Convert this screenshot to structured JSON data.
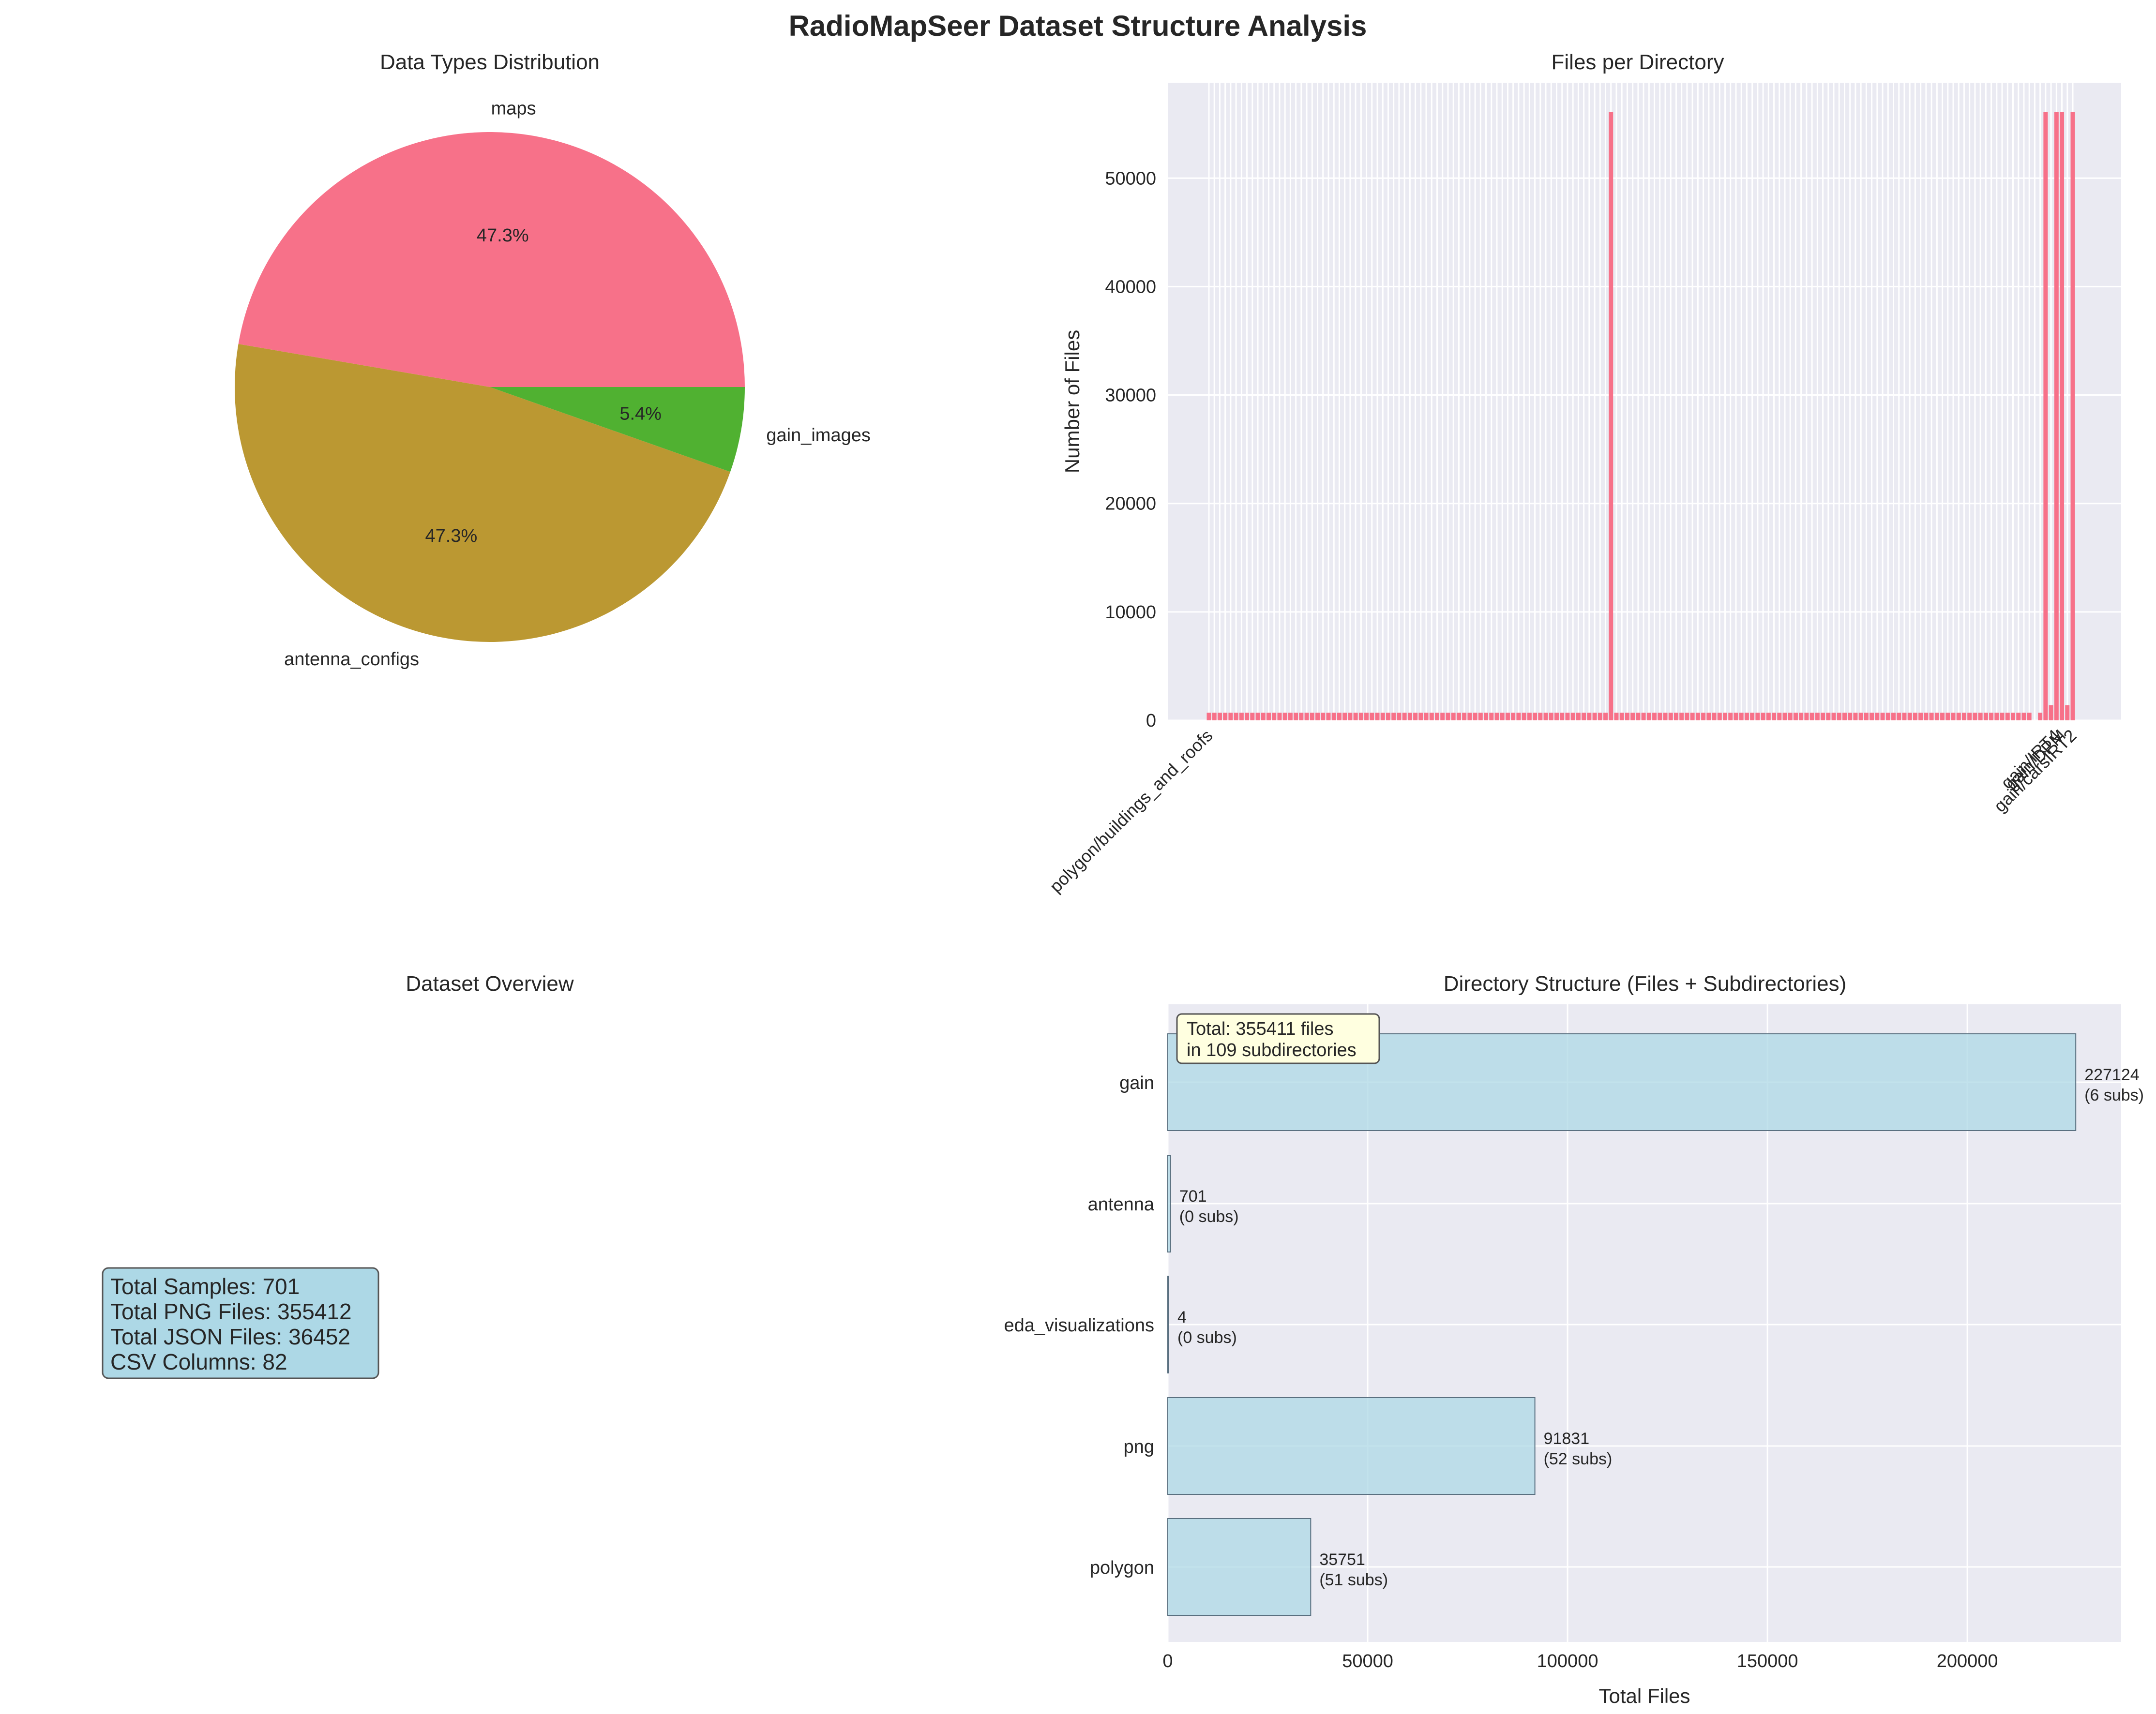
{
  "figure_title": "RadioMapSeer Dataset Structure Analysis",
  "colors": {
    "pie": [
      "#f77189",
      "#bb9832",
      "#50b131"
    ],
    "bar": "#f77189",
    "hbar": "#add8e6",
    "panel_bg": "#eaeaf2",
    "grid": "#ffffff",
    "info_box": "#add8e6",
    "total_box": "#ffffe0"
  },
  "chart_data": [
    {
      "type": "pie",
      "title": "Data Types Distribution",
      "labels": [
        "maps",
        "antenna_configs",
        "gain_images"
      ],
      "values": [
        47.3,
        47.3,
        5.4
      ],
      "autopct": [
        "47.3%",
        "47.3%",
        "5.4%"
      ]
    },
    {
      "type": "bar",
      "title": "Files per Directory",
      "ylabel": "Number of Files",
      "ylim": [
        0,
        58800
      ],
      "yticks": [
        0,
        10000,
        20000,
        30000,
        40000,
        50000
      ],
      "visible_tick_labels": [
        "polygon/buildings_and_roofs",
        "gain/IRT4",
        "gain/DPM",
        "gain/carsIRT2"
      ],
      "values": [
        701,
        701,
        701,
        701,
        701,
        701,
        701,
        701,
        701,
        701,
        701,
        701,
        701,
        701,
        701,
        701,
        701,
        701,
        701,
        701,
        701,
        701,
        701,
        701,
        701,
        701,
        701,
        701,
        701,
        701,
        701,
        701,
        701,
        701,
        701,
        701,
        701,
        701,
        701,
        701,
        701,
        701,
        701,
        701,
        701,
        701,
        701,
        701,
        701,
        701,
        701,
        701,
        701,
        701,
        701,
        701,
        701,
        701,
        701,
        701,
        701,
        701,
        701,
        701,
        701,
        701,
        701,
        701,
        701,
        701,
        701,
        701,
        701,
        701,
        56080,
        701,
        701,
        701,
        701,
        701,
        701,
        701,
        701,
        701,
        701,
        701,
        701,
        701,
        701,
        701,
        701,
        701,
        701,
        701,
        701,
        701,
        701,
        701,
        701,
        701,
        701,
        701,
        701,
        701,
        701,
        701,
        701,
        701,
        701,
        701,
        701,
        701,
        701,
        701,
        701,
        701,
        701,
        701,
        701,
        701,
        701,
        701,
        701,
        701,
        701,
        701,
        701,
        701,
        701,
        701,
        701,
        701,
        701,
        701,
        701,
        701,
        701,
        701,
        701,
        701,
        701,
        701,
        701,
        701,
        701,
        701,
        701,
        701,
        701,
        701,
        701,
        701,
        4,
        701,
        56080,
        1402,
        56080,
        56080,
        1402,
        56080
      ]
    },
    {
      "type": "table",
      "title": "Dataset Overview",
      "lines": [
        "Total Samples: 701",
        "Total PNG Files: 355412",
        "Total JSON Files: 36452",
        "CSV Columns: 82"
      ]
    },
    {
      "type": "bar",
      "orientation": "horizontal",
      "title": "Directory Structure (Files + Subdirectories)",
      "xlabel": "Total Files",
      "xlim": [
        0,
        238480
      ],
      "xticks": [
        0,
        50000,
        100000,
        150000,
        200000
      ],
      "categories": [
        "gain",
        "antenna",
        "eda_visualizations",
        "png",
        "polygon"
      ],
      "values": [
        227124,
        701,
        4,
        91831,
        35751
      ],
      "subs": [
        "(6 subs)",
        "(0 subs)",
        "(0 subs)",
        "(52 subs)",
        "(51 subs)"
      ],
      "annotation": [
        "Total: 355411 files",
        "in 109 subdirectories"
      ]
    }
  ]
}
